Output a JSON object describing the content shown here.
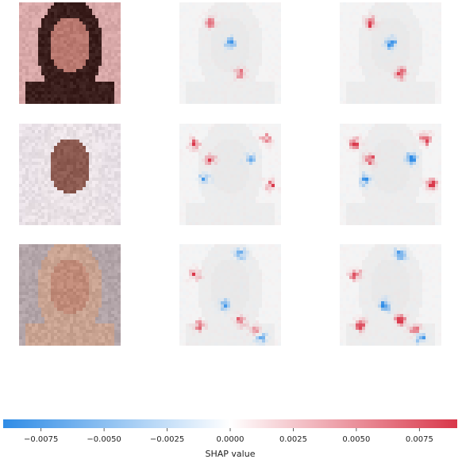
{
  "chart_data": {
    "type": "heatmap",
    "title": "",
    "layout": "3 rows x 3 columns: original image, then SHAP maps for two classes",
    "rows": [
      {
        "image": "portrait-1",
        "palette": {
          "bg": "#d8a8a8",
          "skin": "#b9786f",
          "hair": "#3a1e1c"
        },
        "hotspots": [
          [
            0.3,
            0.2,
            1
          ],
          [
            0.5,
            0.4,
            -1
          ],
          [
            0.6,
            0.7,
            1
          ]
        ]
      },
      {
        "image": "portrait-2",
        "palette": {
          "bg": "#e8e0e6",
          "skin": "#8c5a50",
          "hair": "#eae2e6"
        },
        "hotspots": [
          [
            0.15,
            0.2,
            1
          ],
          [
            0.3,
            0.35,
            1
          ],
          [
            0.25,
            0.55,
            -1
          ],
          [
            0.85,
            0.15,
            1
          ],
          [
            0.7,
            0.35,
            -1
          ],
          [
            0.9,
            0.6,
            1
          ]
        ]
      },
      {
        "image": "portrait-3",
        "palette": {
          "bg": "#b2a4a8",
          "skin": "#c08a78",
          "hair": "#c9a391"
        },
        "hotspots": [
          [
            0.15,
            0.3,
            1
          ],
          [
            0.6,
            0.1,
            -1
          ],
          [
            0.45,
            0.6,
            -1
          ],
          [
            0.2,
            0.8,
            1
          ],
          [
            0.75,
            0.85,
            1
          ],
          [
            0.8,
            0.92,
            -1
          ],
          [
            0.6,
            0.75,
            1
          ]
        ]
      }
    ],
    "colorbar": {
      "label": "SHAP value",
      "min": -0.009,
      "max": 0.009,
      "ticks": [
        -0.0075,
        -0.005,
        -0.0025,
        0.0,
        0.0025,
        0.005,
        0.0075
      ],
      "tick_labels": [
        "−0.0075",
        "−0.0050",
        "−0.0025",
        "0.0000",
        "0.0025",
        "0.0050",
        "0.0075"
      ],
      "colors": {
        "negative": "#2f8ce6",
        "zero": "#ffffff",
        "positive": "#d9374a"
      }
    }
  }
}
